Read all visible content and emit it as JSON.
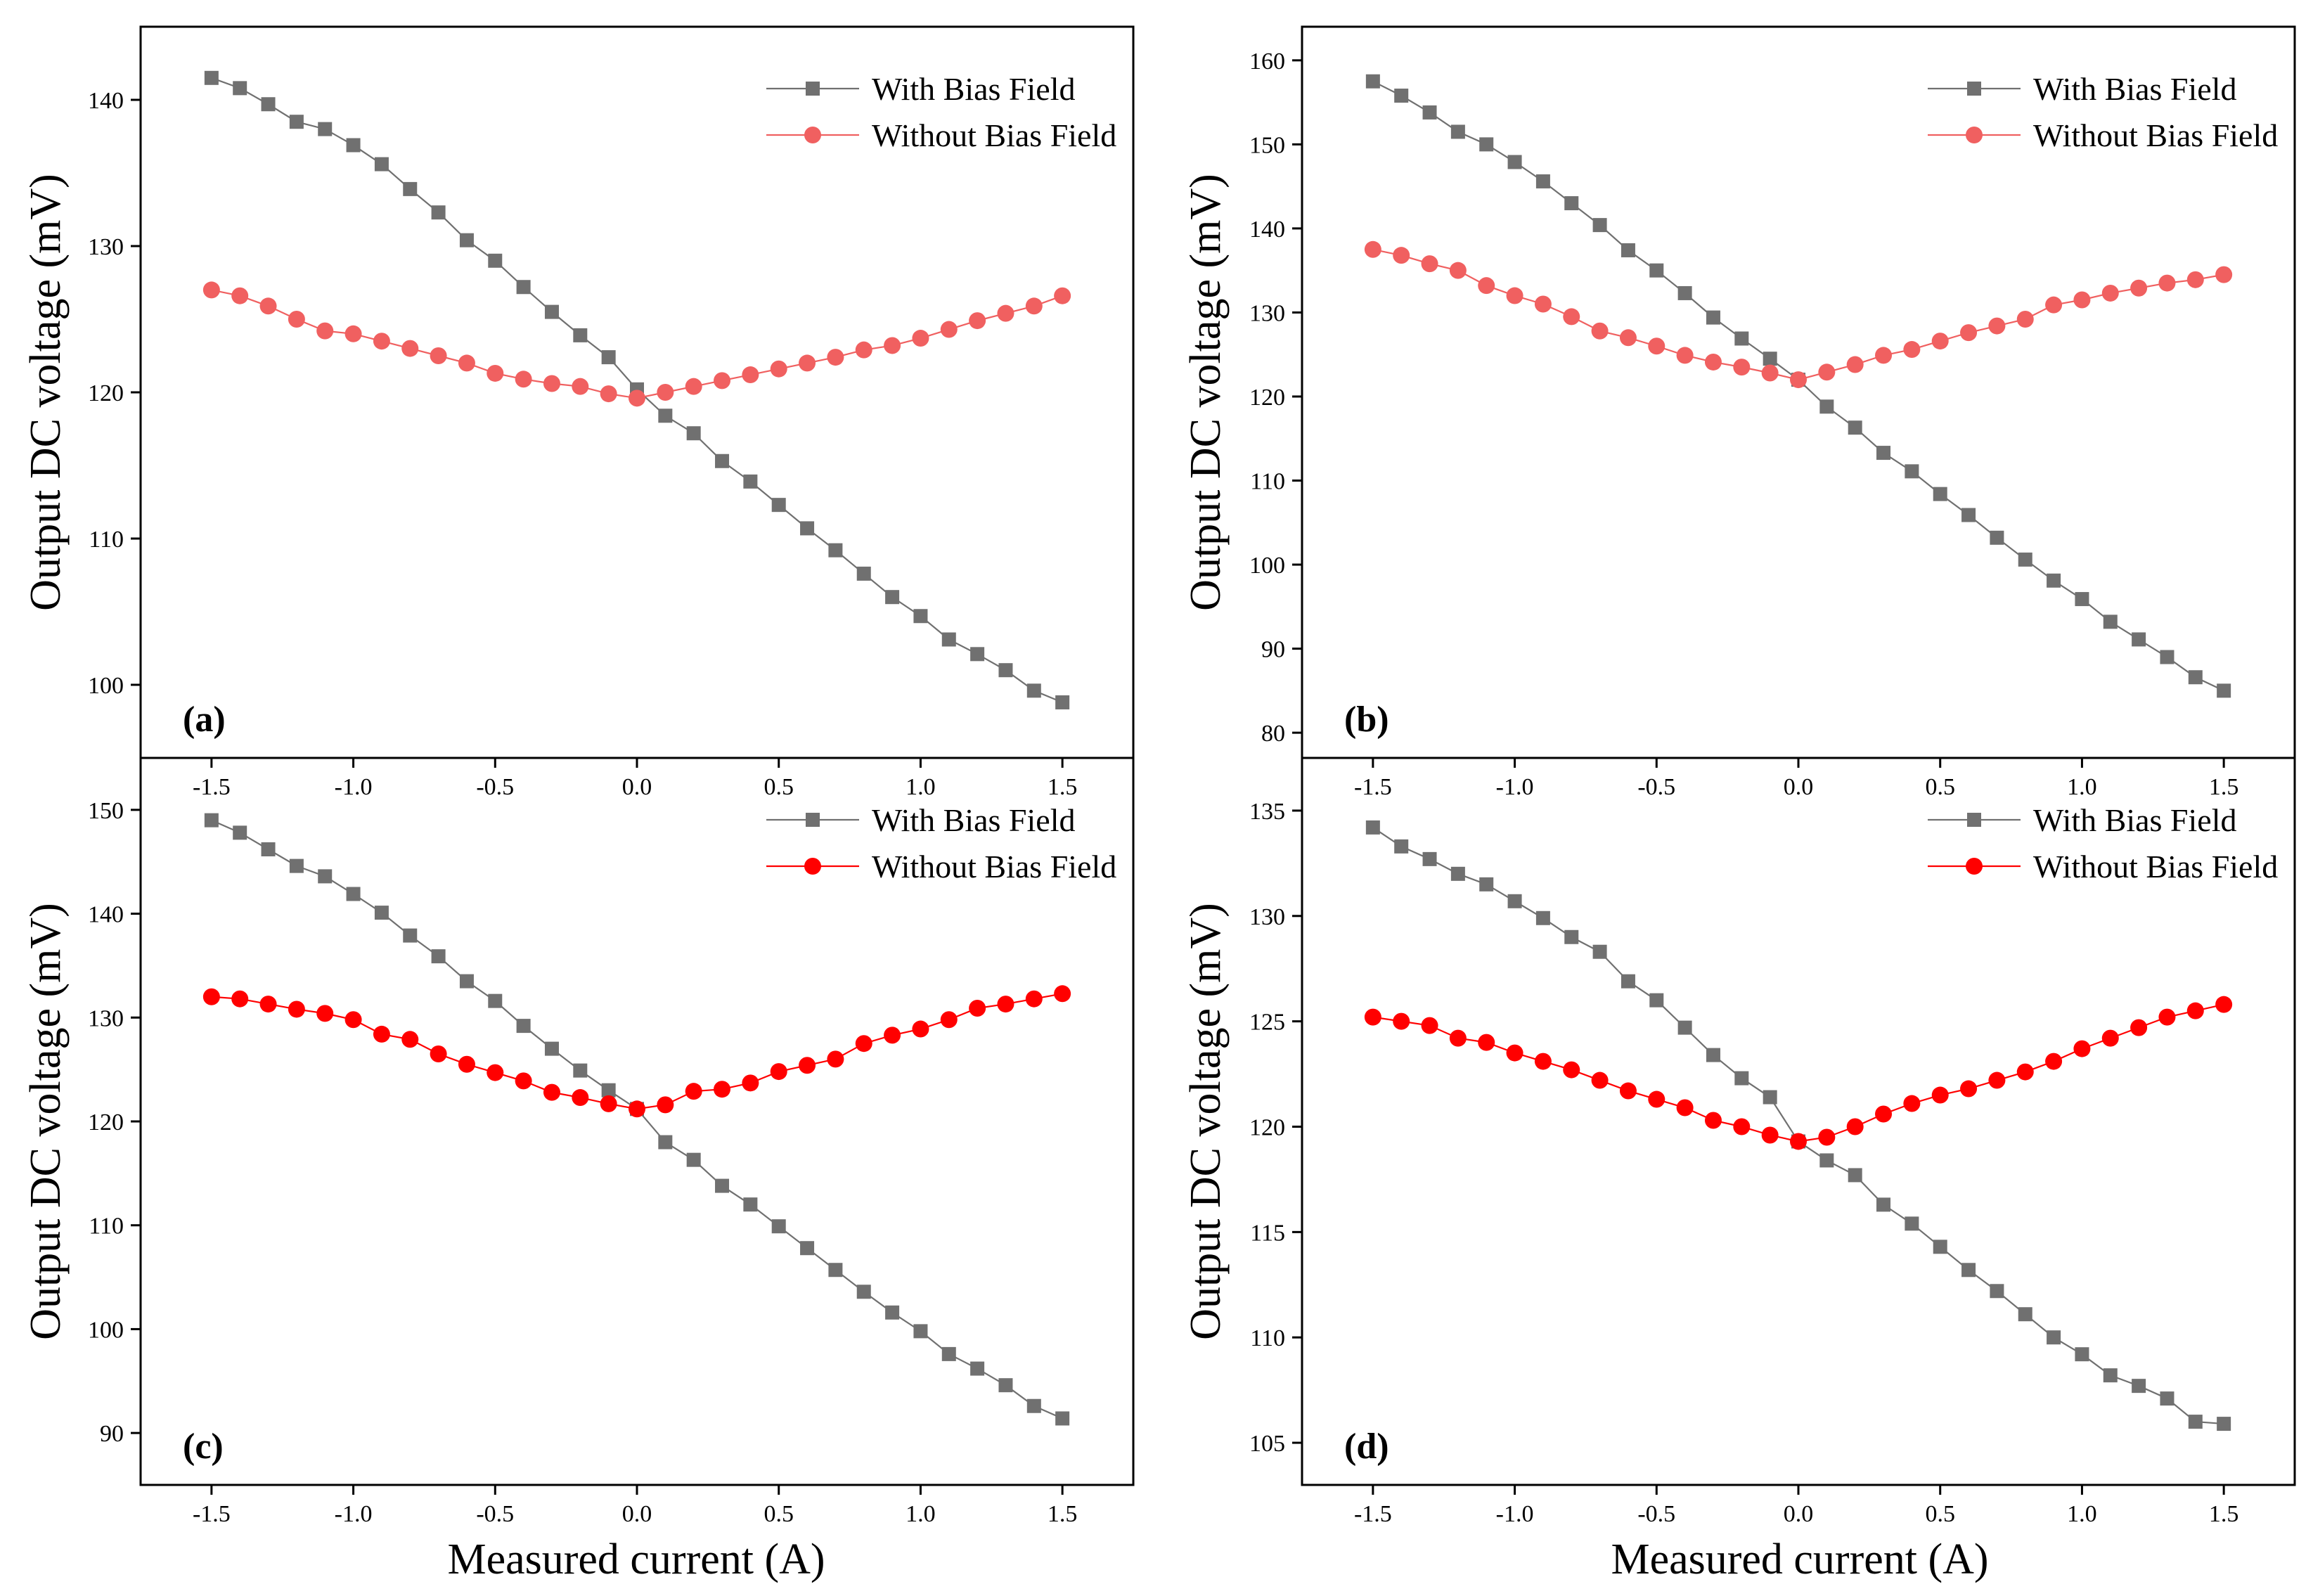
{
  "figure": {
    "xlabel": "Measured current (A)",
    "ylabel": "Output DC voltage (mV)"
  },
  "chart_data": [
    {
      "type": "line",
      "panel": "(a)",
      "xlim": [
        -1.75,
        1.75
      ],
      "ylim": [
        95,
        145
      ],
      "x_ticks": [
        -1.5,
        -1.0,
        -0.5,
        0.0,
        0.5,
        1.0,
        1.5
      ],
      "y_ticks": [
        100,
        110,
        120,
        130,
        140
      ],
      "legend": "top-right",
      "x": [
        -1.5,
        -1.4,
        -1.3,
        -1.2,
        -1.1,
        -1.0,
        -0.9,
        -0.8,
        -0.7,
        -0.6,
        -0.5,
        -0.4,
        -0.3,
        -0.2,
        -0.1,
        0.0,
        0.1,
        0.2,
        0.3,
        0.4,
        0.5,
        0.6,
        0.7,
        0.8,
        0.9,
        1.0,
        1.1,
        1.2,
        1.3,
        1.4,
        1.5
      ],
      "series": [
        {
          "name": "With Bias Field",
          "marker": "square",
          "color": "#707070",
          "values": [
            141.5,
            140.8,
            139.7,
            138.5,
            138.0,
            136.9,
            135.6,
            133.9,
            132.3,
            130.4,
            129.0,
            127.2,
            125.5,
            123.9,
            122.4,
            120.2,
            118.4,
            117.2,
            115.3,
            113.9,
            112.3,
            110.7,
            109.2,
            107.6,
            106.0,
            104.7,
            103.1,
            102.1,
            101.0,
            99.6,
            98.8
          ]
        },
        {
          "name": "Without Bias Field",
          "marker": "circle",
          "color": "#f06060",
          "values": [
            127.0,
            126.6,
            125.9,
            125.0,
            124.2,
            124.0,
            123.5,
            123.0,
            122.5,
            122.0,
            121.3,
            120.9,
            120.6,
            120.4,
            119.9,
            119.6,
            120.0,
            120.4,
            120.8,
            121.2,
            121.6,
            122.0,
            122.4,
            122.9,
            123.2,
            123.7,
            124.3,
            124.9,
            125.4,
            125.9,
            126.6
          ]
        }
      ]
    },
    {
      "type": "line",
      "panel": "(b)",
      "xlim": [
        -1.75,
        1.75
      ],
      "ylim": [
        77,
        164
      ],
      "x_ticks": [
        -1.5,
        -1.0,
        -0.5,
        0.0,
        0.5,
        1.0,
        1.5
      ],
      "y_ticks": [
        80,
        90,
        100,
        110,
        120,
        130,
        140,
        150,
        160
      ],
      "legend": "top-right",
      "x": [
        -1.5,
        -1.4,
        -1.3,
        -1.2,
        -1.1,
        -1.0,
        -0.9,
        -0.8,
        -0.7,
        -0.6,
        -0.5,
        -0.4,
        -0.3,
        -0.2,
        -0.1,
        0.0,
        0.1,
        0.2,
        0.3,
        0.4,
        0.5,
        0.6,
        0.7,
        0.8,
        0.9,
        1.0,
        1.1,
        1.2,
        1.3,
        1.4,
        1.5
      ],
      "series": [
        {
          "name": "With Bias Field",
          "marker": "square",
          "color": "#707070",
          "values": [
            157.5,
            155.8,
            153.8,
            151.5,
            150.0,
            147.9,
            145.6,
            143.0,
            140.4,
            137.4,
            135.0,
            132.3,
            129.4,
            126.9,
            124.5,
            122.0,
            118.8,
            116.3,
            113.3,
            111.1,
            108.4,
            105.9,
            103.2,
            100.6,
            98.1,
            95.9,
            93.2,
            91.1,
            89.0,
            86.6,
            85.0
          ]
        },
        {
          "name": "Without Bias Field",
          "marker": "circle",
          "color": "#f06060",
          "values": [
            137.5,
            136.8,
            135.8,
            135.0,
            133.2,
            132.0,
            131.0,
            129.5,
            127.8,
            127.0,
            126.0,
            124.9,
            124.1,
            123.5,
            122.8,
            122.0,
            122.9,
            123.8,
            124.9,
            125.6,
            126.6,
            127.6,
            128.4,
            129.2,
            130.9,
            131.5,
            132.3,
            132.9,
            133.5,
            133.9,
            134.5
          ]
        }
      ]
    },
    {
      "type": "line",
      "panel": "(c)",
      "xlim": [
        -1.75,
        1.75
      ],
      "ylim": [
        85,
        155
      ],
      "x_ticks": [
        -1.5,
        -1.0,
        -0.5,
        0.0,
        0.5,
        1.0,
        1.5
      ],
      "y_ticks": [
        90,
        100,
        110,
        120,
        130,
        140,
        150
      ],
      "legend": "top-right",
      "x": [
        -1.5,
        -1.4,
        -1.3,
        -1.2,
        -1.1,
        -1.0,
        -0.9,
        -0.8,
        -0.7,
        -0.6,
        -0.5,
        -0.4,
        -0.3,
        -0.2,
        -0.1,
        0.0,
        0.1,
        0.2,
        0.3,
        0.4,
        0.5,
        0.6,
        0.7,
        0.8,
        0.9,
        1.0,
        1.1,
        1.2,
        1.3,
        1.4,
        1.5
      ],
      "series": [
        {
          "name": "With Bias Field",
          "marker": "square",
          "color": "#707070",
          "values": [
            149.0,
            147.8,
            146.2,
            144.6,
            143.6,
            141.9,
            140.1,
            137.9,
            135.9,
            133.5,
            131.6,
            129.2,
            127.0,
            124.9,
            123.0,
            121.2,
            118.0,
            116.3,
            113.8,
            112.0,
            109.9,
            107.8,
            105.7,
            103.6,
            101.6,
            99.8,
            97.6,
            96.2,
            94.6,
            92.6,
            91.4
          ]
        },
        {
          "name": "Without Bias Field",
          "marker": "circle",
          "color": "#ff0000",
          "values": [
            132.0,
            131.8,
            131.3,
            130.8,
            130.4,
            129.8,
            128.4,
            127.9,
            126.5,
            125.5,
            124.7,
            123.9,
            122.8,
            122.3,
            121.7,
            121.2,
            121.6,
            122.9,
            123.1,
            123.7,
            124.8,
            125.4,
            126.0,
            127.5,
            128.3,
            128.9,
            129.8,
            130.9,
            131.3,
            131.8,
            132.3
          ]
        }
      ]
    },
    {
      "type": "line",
      "panel": "(d)",
      "xlim": [
        -1.75,
        1.75
      ],
      "ylim": [
        103,
        137.5
      ],
      "x_ticks": [
        -1.5,
        -1.0,
        -0.5,
        0.0,
        0.5,
        1.0,
        1.5
      ],
      "y_ticks": [
        105,
        110,
        115,
        120,
        125,
        130,
        135
      ],
      "legend": "top-right",
      "x": [
        -1.5,
        -1.4,
        -1.3,
        -1.2,
        -1.1,
        -1.0,
        -0.9,
        -0.8,
        -0.7,
        -0.6,
        -0.5,
        -0.4,
        -0.3,
        -0.2,
        -0.1,
        0.0,
        0.1,
        0.2,
        0.3,
        0.4,
        0.5,
        0.6,
        0.7,
        0.8,
        0.9,
        1.0,
        1.1,
        1.2,
        1.3,
        1.4,
        1.5
      ],
      "series": [
        {
          "name": "With Bias Field",
          "marker": "square",
          "color": "#707070",
          "values": [
            134.2,
            133.3,
            132.7,
            132.0,
            131.5,
            130.7,
            129.9,
            129.0,
            128.3,
            126.9,
            126.0,
            124.7,
            123.4,
            122.3,
            121.4,
            119.3,
            118.4,
            117.7,
            116.3,
            115.4,
            114.3,
            113.2,
            112.2,
            111.1,
            110.0,
            109.2,
            108.2,
            107.7,
            107.1,
            106.0,
            105.9
          ]
        },
        {
          "name": "Without Bias Field",
          "marker": "circle",
          "color": "#ff0000",
          "values": [
            125.2,
            125.0,
            124.8,
            124.2,
            124.0,
            123.5,
            123.1,
            122.7,
            122.2,
            121.7,
            121.3,
            120.9,
            120.3,
            120.0,
            119.6,
            119.3,
            119.5,
            120.0,
            120.6,
            121.1,
            121.5,
            121.8,
            122.2,
            122.6,
            123.1,
            123.7,
            124.2,
            124.7,
            125.2,
            125.5,
            125.8
          ]
        }
      ]
    }
  ]
}
